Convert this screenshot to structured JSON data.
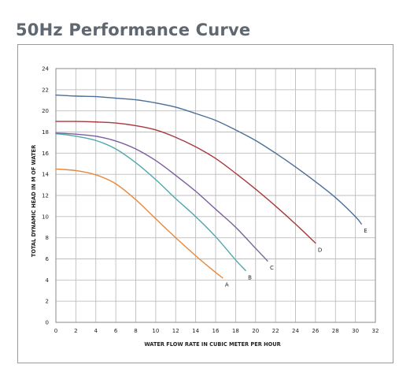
{
  "page": {
    "title": "50Hz Performance Curve"
  },
  "chart_data": {
    "type": "line",
    "title": "",
    "xlabel": "WATER FLOW RATE IN CUBIC METER PER HOUR",
    "ylabel": "TOTAL DYNAMIC HEAD IN M OF WATER",
    "xlim": [
      0,
      32
    ],
    "ylim": [
      0,
      24
    ],
    "xticks": [
      0,
      2,
      4,
      6,
      8,
      10,
      12,
      14,
      16,
      18,
      20,
      22,
      24,
      26,
      28,
      30,
      32
    ],
    "yticks": [
      0,
      2,
      4,
      6,
      8,
      10,
      12,
      14,
      16,
      18,
      20,
      22,
      24
    ],
    "grid": true,
    "series": [
      {
        "name": "A",
        "color": "#e8873a",
        "points": [
          [
            0,
            14.5
          ],
          [
            2,
            14.35
          ],
          [
            4,
            13.95
          ],
          [
            6,
            13.1
          ],
          [
            8,
            11.6
          ],
          [
            10,
            9.8
          ],
          [
            12,
            8.0
          ],
          [
            14,
            6.3
          ],
          [
            15.5,
            5.1
          ],
          [
            16.7,
            4.2
          ]
        ]
      },
      {
        "name": "B",
        "color": "#4fa7b0",
        "points": [
          [
            0,
            17.85
          ],
          [
            2,
            17.6
          ],
          [
            4,
            17.2
          ],
          [
            6,
            16.4
          ],
          [
            8,
            15.1
          ],
          [
            10,
            13.5
          ],
          [
            12,
            11.7
          ],
          [
            14,
            10.0
          ],
          [
            16,
            8.1
          ],
          [
            18,
            5.9
          ],
          [
            19,
            4.9
          ]
        ]
      },
      {
        "name": "C",
        "color": "#7a5e9e",
        "points": [
          [
            0,
            17.9
          ],
          [
            2,
            17.8
          ],
          [
            4,
            17.6
          ],
          [
            6,
            17.15
          ],
          [
            8,
            16.4
          ],
          [
            10,
            15.3
          ],
          [
            12,
            13.9
          ],
          [
            14,
            12.4
          ],
          [
            16,
            10.7
          ],
          [
            18,
            9.0
          ],
          [
            20,
            7.0
          ],
          [
            21.2,
            5.8
          ]
        ]
      },
      {
        "name": "D",
        "color": "#a8393e",
        "points": [
          [
            0,
            19.0
          ],
          [
            2,
            19.0
          ],
          [
            4,
            18.95
          ],
          [
            6,
            18.85
          ],
          [
            8,
            18.6
          ],
          [
            10,
            18.2
          ],
          [
            12,
            17.5
          ],
          [
            14,
            16.6
          ],
          [
            16,
            15.5
          ],
          [
            18,
            14.1
          ],
          [
            20,
            12.6
          ],
          [
            22,
            11.0
          ],
          [
            24,
            9.3
          ],
          [
            26,
            7.5
          ]
        ]
      },
      {
        "name": "E",
        "color": "#4a6f99",
        "points": [
          [
            0,
            21.5
          ],
          [
            2,
            21.4
          ],
          [
            4,
            21.35
          ],
          [
            6,
            21.2
          ],
          [
            8,
            21.05
          ],
          [
            10,
            20.75
          ],
          [
            12,
            20.35
          ],
          [
            14,
            19.75
          ],
          [
            16,
            19.1
          ],
          [
            18,
            18.2
          ],
          [
            20,
            17.2
          ],
          [
            22,
            16.0
          ],
          [
            24,
            14.7
          ],
          [
            26,
            13.3
          ],
          [
            28,
            11.8
          ],
          [
            30,
            10.0
          ],
          [
            30.6,
            9.3
          ]
        ]
      }
    ]
  }
}
